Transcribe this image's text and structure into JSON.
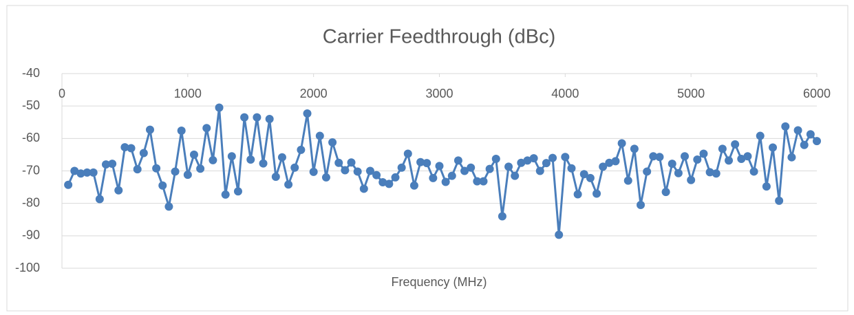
{
  "chart_data": {
    "type": "line",
    "title": "Carrier Feedthrough (dBc)",
    "x_label": "Frequency (MHz)",
    "x": [
      50,
      100,
      150,
      200,
      250,
      300,
      350,
      400,
      450,
      500,
      550,
      600,
      650,
      700,
      750,
      800,
      850,
      900,
      950,
      1000,
      1050,
      1100,
      1150,
      1200,
      1250,
      1300,
      1350,
      1400,
      1450,
      1500,
      1550,
      1600,
      1650,
      1700,
      1750,
      1800,
      1850,
      1900,
      1950,
      2000,
      2050,
      2100,
      2150,
      2200,
      2250,
      2300,
      2350,
      2400,
      2450,
      2500,
      2550,
      2600,
      2650,
      2700,
      2750,
      2800,
      2850,
      2900,
      2950,
      3000,
      3050,
      3100,
      3150,
      3200,
      3250,
      3300,
      3350,
      3400,
      3450,
      3500,
      3550,
      3600,
      3650,
      3700,
      3750,
      3800,
      3850,
      3900,
      3950,
      4000,
      4050,
      4100,
      4150,
      4200,
      4250,
      4300,
      4350,
      4400,
      4450,
      4500,
      4550,
      4600,
      4650,
      4700,
      4750,
      4800,
      4850,
      4900,
      4950,
      5000,
      5050,
      5100,
      5150,
      5200,
      5250,
      5300,
      5350,
      5400,
      5450,
      5500,
      5550,
      5600,
      5650,
      5700,
      5750,
      5800,
      5850,
      5900,
      5950,
      6000
    ],
    "series": [
      {
        "color": "#4a7ebb",
        "values": [
          -74.3,
          -70,
          -70.8,
          -70.5,
          -70.5,
          -78.7,
          -68,
          -67.8,
          -76,
          -62.7,
          -63,
          -69.5,
          -64.5,
          -57.3,
          -69.2,
          -74.5,
          -81,
          -70.2,
          -57.6,
          -71.2,
          -65,
          -69.3,
          -56.8,
          -66.7,
          -50.5,
          -77.3,
          -65.5,
          -76.3,
          -53.5,
          -66.5,
          -53.5,
          -67.7,
          -54,
          -71.8,
          -65.8,
          -74.2,
          -69,
          -63.5,
          -52.3,
          -70.3,
          -59.2,
          -72,
          -61.2,
          -67.5,
          -69.8,
          -67.4,
          -70.2,
          -75.5,
          -70,
          -71.3,
          -73.5,
          -74,
          -72,
          -69,
          -64.7,
          -74.5,
          -67.3,
          -67.6,
          -72.2,
          -68.5,
          -73.4,
          -71.5,
          -66.8,
          -70,
          -69,
          -73.2,
          -73.2,
          -69.4,
          -66.3,
          -84,
          -68.7,
          -71.5,
          -67.5,
          -66.8,
          -66.1,
          -70,
          -67.6,
          -66,
          -89.7,
          -65.7,
          -69.2,
          -77.2,
          -71,
          -72.2,
          -77,
          -68.7,
          -67.5,
          -67,
          -61.5,
          -73,
          -63.2,
          -80.5,
          -70.2,
          -65.5,
          -65.7,
          -76.5,
          -67.8,
          -70.7,
          -65.5,
          -72.8,
          -66.5,
          -64.7,
          -70.4,
          -70.8,
          -63.2,
          -66.8,
          -61.8,
          -66.3,
          -65.5,
          -70.2,
          -59.2,
          -74.8,
          -62.8,
          -79.2,
          -56.3,
          -65.8,
          -57.5,
          -62,
          -58.7,
          -60.8
        ]
      }
    ],
    "xlim": [
      0,
      6000
    ],
    "xticks": [
      0,
      1000,
      2000,
      3000,
      4000,
      5000,
      6000
    ],
    "ylim": [
      -100,
      -40
    ],
    "yticks": [
      -100,
      -90,
      -80,
      -70,
      -60,
      -50,
      -40
    ],
    "grid": true
  }
}
